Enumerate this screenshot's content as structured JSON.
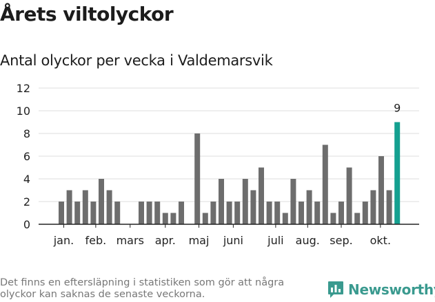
{
  "title": "Årets viltolyckor",
  "subtitle": "Antal olyckor per vecka i Valdemarsvik",
  "footnote": "Det finns en eftersläpning i statistiken som gör att några olyckor kan saknas de senaste veckorna.",
  "brand": {
    "name": "Newsworthy",
    "icon": "newsworthy-logo-icon"
  },
  "colors": {
    "bar": "#6d6d6d",
    "highlight": "#14a090",
    "grid": "#dddddd",
    "axis": "#222222"
  },
  "chart_data": {
    "type": "bar",
    "title": "Antal olyckor per vecka i Valdemarsvik",
    "xlabel": "",
    "ylabel": "",
    "ylim": [
      0,
      12
    ],
    "yticks": [
      0,
      2,
      4,
      6,
      8,
      10,
      12
    ],
    "grid": true,
    "x": [
      1,
      2,
      3,
      4,
      5,
      6,
      7,
      8,
      9,
      10,
      11,
      12,
      13,
      14,
      15,
      16,
      17,
      18,
      19,
      20,
      21,
      22,
      23,
      24,
      25,
      26,
      27,
      28,
      29,
      30,
      31,
      32,
      33,
      34,
      35,
      36,
      37,
      38,
      39,
      40,
      41,
      42,
      43
    ],
    "values": [
      2,
      3,
      2,
      3,
      2,
      4,
      3,
      2,
      0,
      0,
      2,
      2,
      2,
      1,
      1,
      2,
      0,
      8,
      1,
      2,
      4,
      2,
      2,
      4,
      3,
      5,
      2,
      2,
      1,
      4,
      2,
      3,
      2,
      7,
      1,
      2,
      5,
      1,
      2,
      3,
      6,
      3,
      9
    ],
    "month_labels": [
      {
        "label": "jan.",
        "x": 1.3
      },
      {
        "label": "feb.",
        "x": 5.3
      },
      {
        "label": "mars",
        "x": 9.6
      },
      {
        "label": "apr.",
        "x": 14.0
      },
      {
        "label": "maj",
        "x": 18.2
      },
      {
        "label": "juni",
        "x": 22.5
      },
      {
        "label": "juli",
        "x": 27.8
      },
      {
        "label": "aug.",
        "x": 31.8
      },
      {
        "label": "sep.",
        "x": 36.0
      },
      {
        "label": "okt.",
        "x": 40.9
      }
    ],
    "highlight_index": 42,
    "highlight_label": "9"
  }
}
